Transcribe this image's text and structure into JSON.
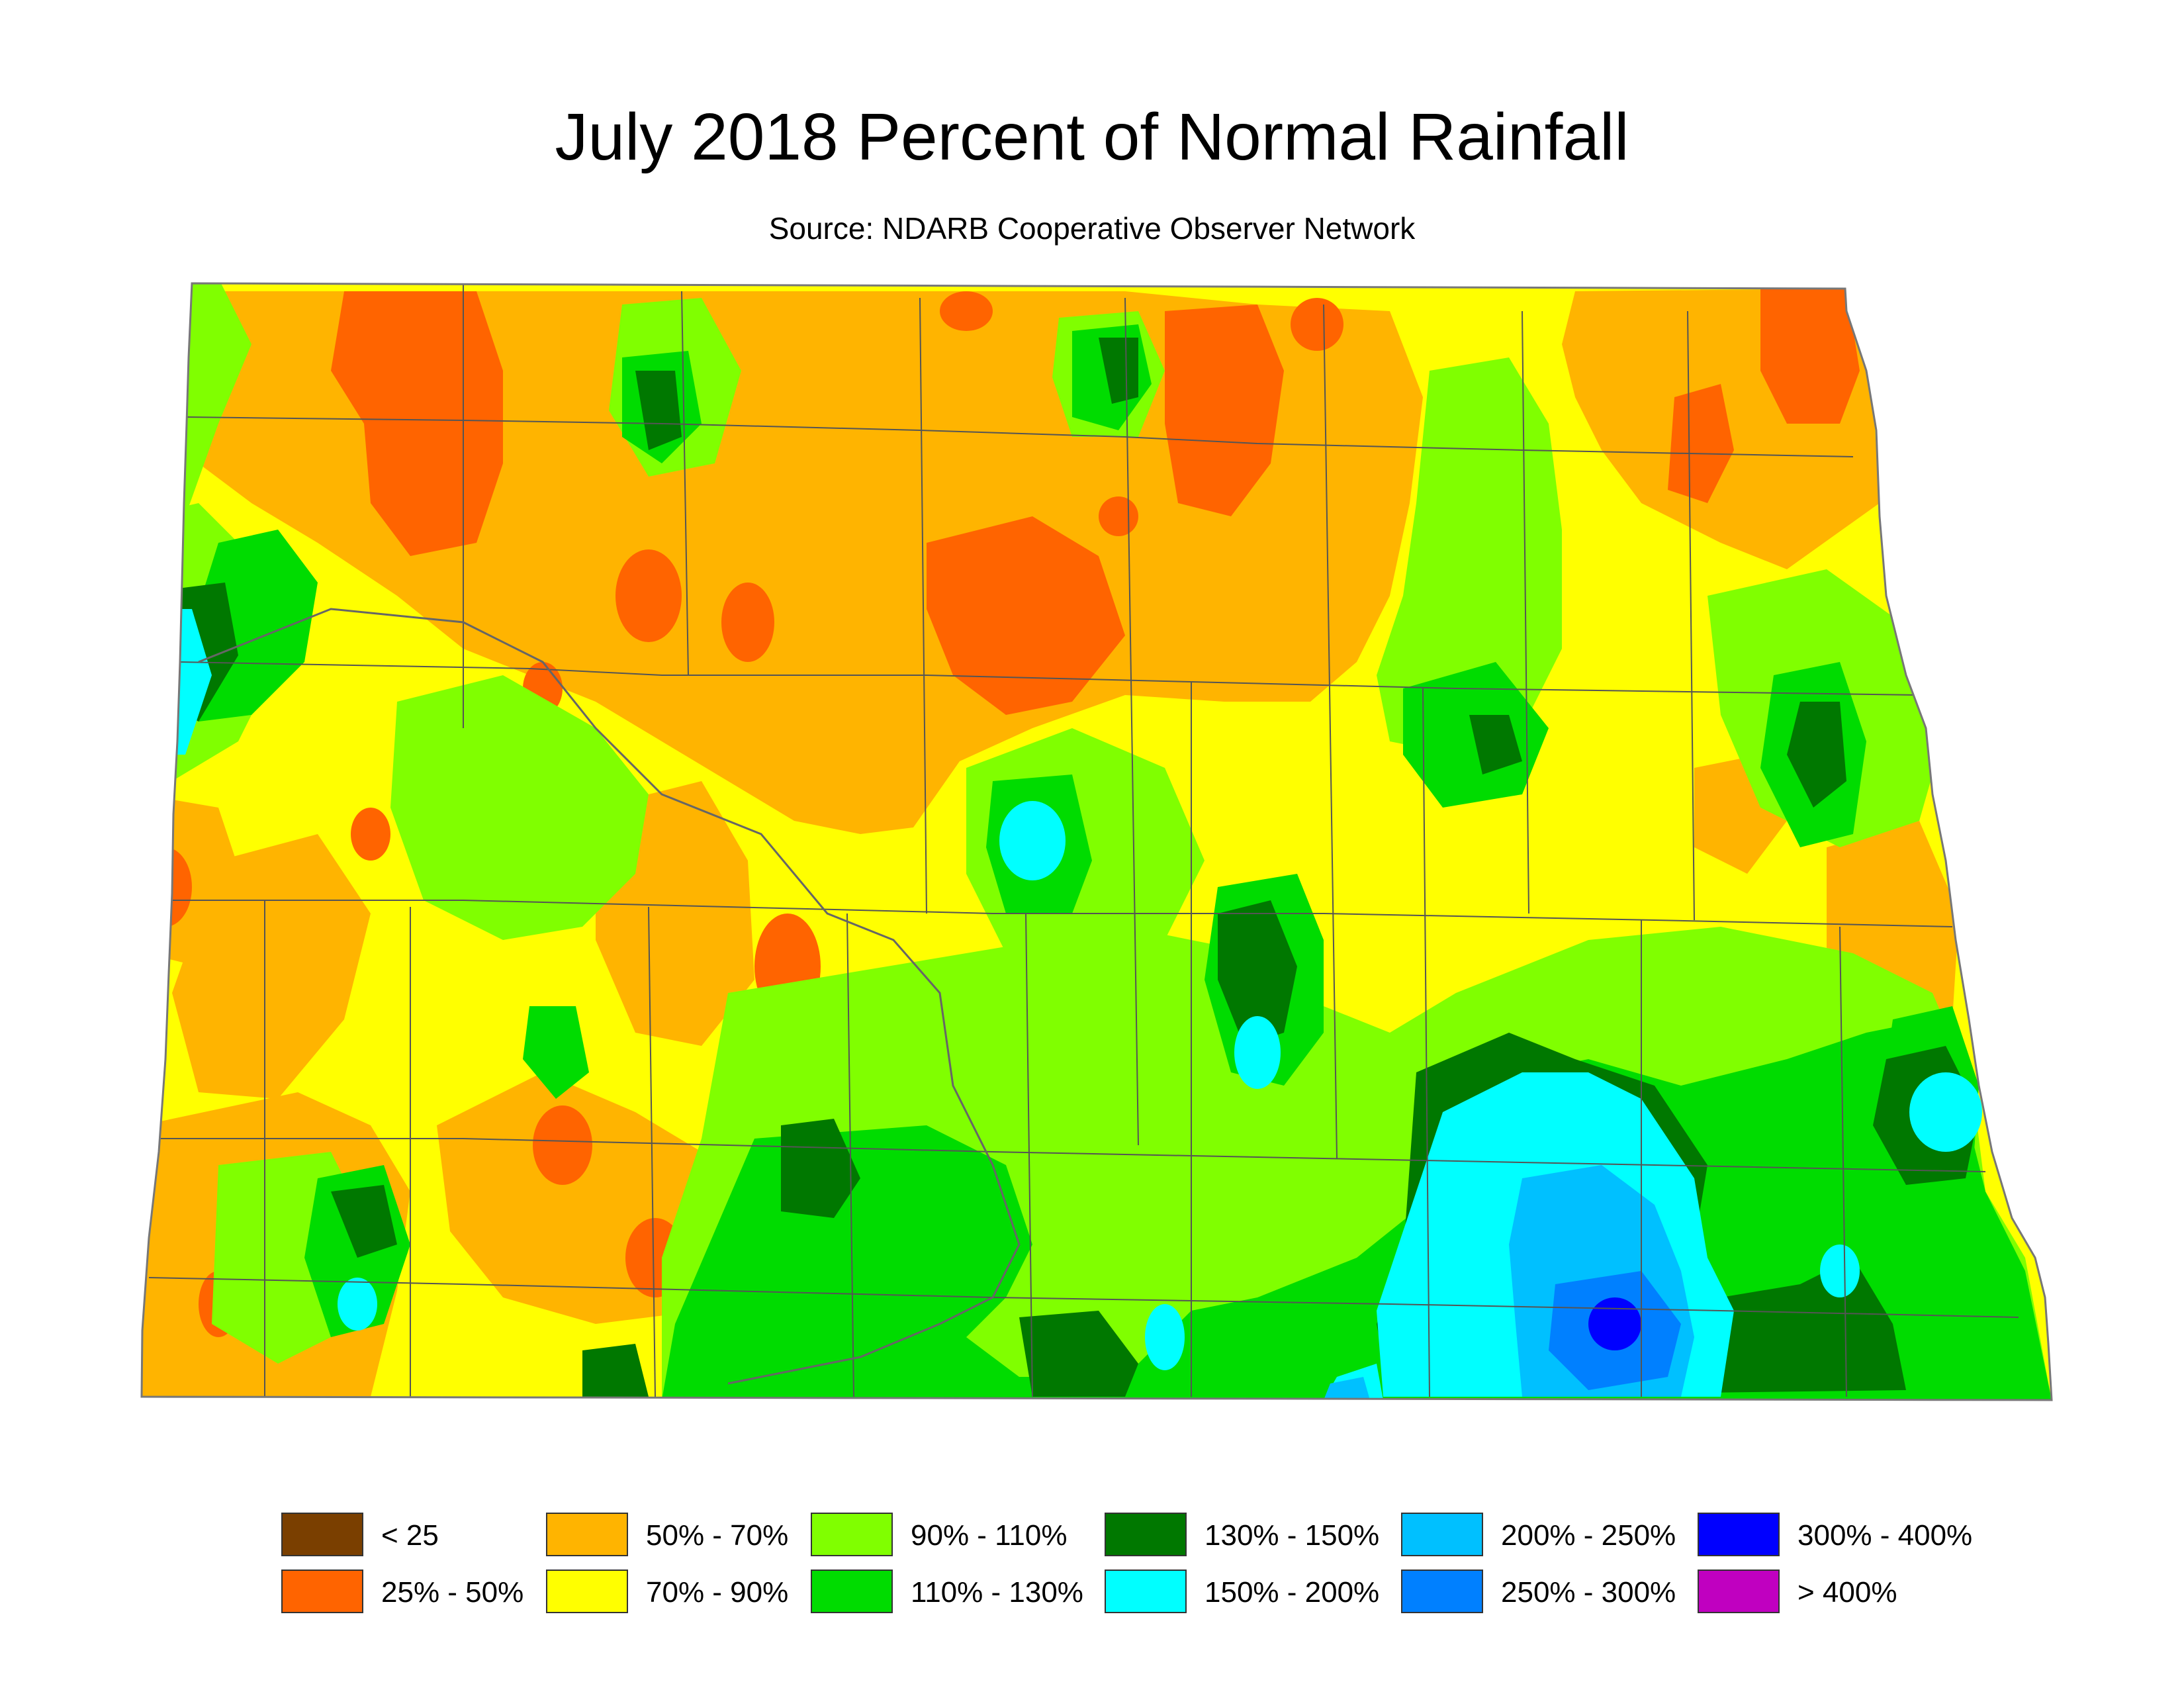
{
  "title": "July 2018 Percent of Normal Rainfall",
  "subtitle": "Source: NDARB Cooperative Observer Network",
  "legend": [
    {
      "label": "< 25",
      "color": "#7a3f00"
    },
    {
      "label": "25% - 50%",
      "color": "#ff6400"
    },
    {
      "label": "50% - 70%",
      "color": "#ffb400"
    },
    {
      "label": "70% - 90%",
      "color": "#ffff00"
    },
    {
      "label": "90% - 110%",
      "color": "#80ff00"
    },
    {
      "label": "110% - 130%",
      "color": "#00dc00"
    },
    {
      "label": "130% - 150%",
      "color": "#007800"
    },
    {
      "label": "150% - 200%",
      "color": "#00ffff"
    },
    {
      "label": "200% - 250%",
      "color": "#00c0ff"
    },
    {
      "label": "250% - 300%",
      "color": "#0080ff"
    },
    {
      "label": "300% - 400%",
      "color": "#0000ff"
    },
    {
      "label": "> 400%",
      "color": "#c000c0"
    }
  ]
}
